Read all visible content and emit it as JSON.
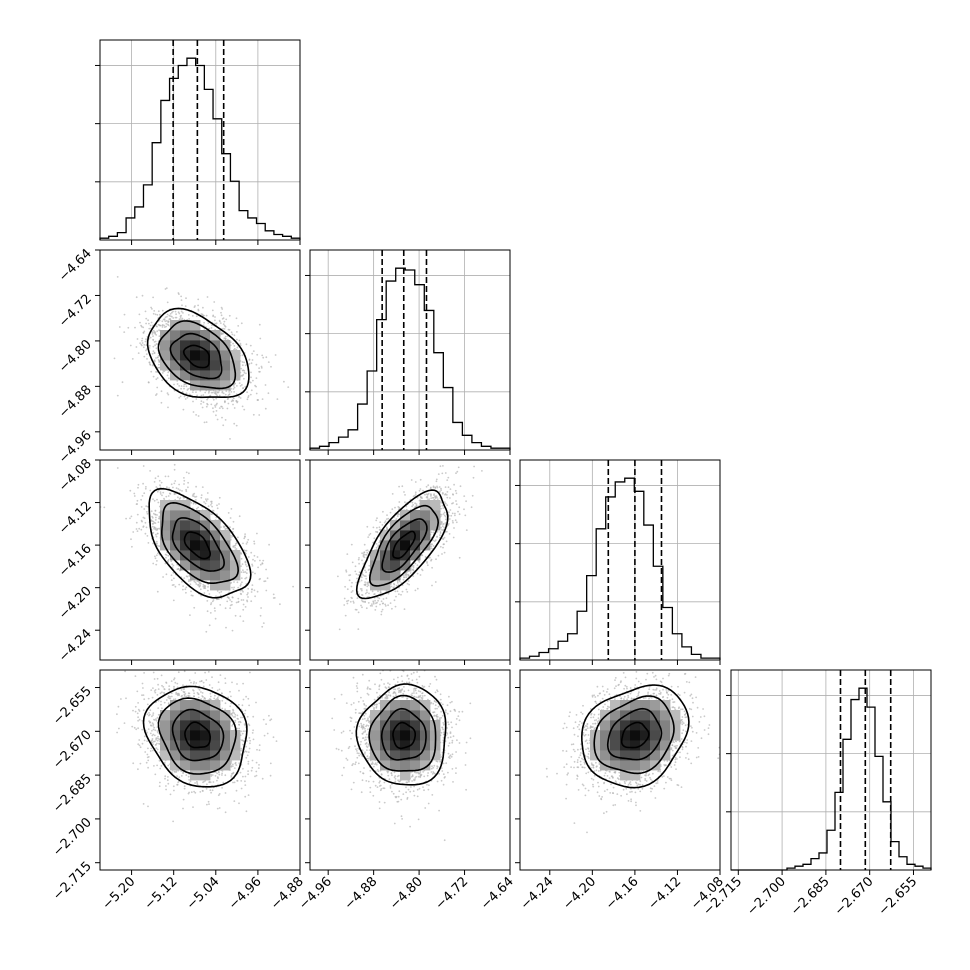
{
  "chart_data": {
    "type": "corner",
    "grid": true,
    "num_params": 4,
    "params": [
      {
        "range": [
          -5.26,
          -4.88
        ],
        "ticks": [
          -5.2,
          -5.12,
          -5.04,
          -4.96,
          -4.88
        ],
        "tick_labels": [
          "−5.20",
          "−5.12",
          "−5.04",
          "−4.96",
          "−4.88"
        ],
        "median": -5.075,
        "q16": -5.121,
        "q84": -5.025,
        "hist_counts": [
          1,
          2,
          4,
          12,
          18,
          30,
          53,
          76,
          88,
          95,
          99,
          95,
          82,
          66,
          47,
          32,
          16,
          12,
          9,
          5,
          3,
          2,
          1
        ]
      },
      {
        "range": [
          -4.992,
          -4.64
        ],
        "ticks": [
          -4.96,
          -4.88,
          -4.8,
          -4.72,
          -4.64
        ],
        "tick_labels": [
          "−4.96",
          "−4.88",
          "−4.80",
          "−4.72",
          "−4.64"
        ],
        "median": -4.827,
        "q16": -4.865,
        "q84": -4.787,
        "hist_counts": [
          1,
          2,
          4,
          7,
          11,
          25,
          43,
          71,
          92,
          99,
          98,
          90,
          76,
          53,
          34,
          15,
          8,
          4,
          2,
          1,
          1
        ]
      },
      {
        "range": [
          -4.268,
          -4.08
        ],
        "ticks": [
          -4.24,
          -4.2,
          -4.16,
          -4.12,
          -4.08
        ],
        "tick_labels": [
          "−4.24",
          "−4.20",
          "−4.16",
          "−4.12",
          "−4.08"
        ],
        "median": -4.16,
        "q16": -4.185,
        "q84": -4.135,
        "hist_counts": [
          1,
          2,
          4,
          6,
          10,
          14,
          26,
          45,
          70,
          87,
          95,
          97,
          90,
          72,
          50,
          28,
          14,
          7,
          3,
          1,
          1
        ]
      },
      {
        "range": [
          -2.7175,
          -2.649
        ],
        "ticks": [
          -2.715,
          -2.7,
          -2.685,
          -2.67,
          -2.655
        ],
        "tick_labels": [
          "−2.715",
          "−2.700",
          "−2.685",
          "−2.670",
          "−2.655"
        ],
        "median": -2.6715,
        "q16": -2.68,
        "q84": -2.6628,
        "hist_counts": [
          0,
          0,
          0,
          0,
          0,
          0,
          0,
          1,
          2,
          3,
          6,
          9,
          21,
          41,
          69,
          90,
          96,
          86,
          60,
          36,
          15,
          7,
          3,
          2,
          1
        ]
      }
    ],
    "pairs": [
      {
        "row": 1,
        "col": 0,
        "correlation": -0.35
      },
      {
        "row": 2,
        "col": 0,
        "correlation": -0.55
      },
      {
        "row": 2,
        "col": 1,
        "correlation": 0.7
      },
      {
        "row": 3,
        "col": 0,
        "correlation": -0.15
      },
      {
        "row": 3,
        "col": 1,
        "correlation": 0.0
      },
      {
        "row": 3,
        "col": 2,
        "correlation": 0.2
      }
    ],
    "contour_levels_sigma": [
      0.5,
      1.0,
      1.5,
      2.0
    ],
    "colors": {
      "line": "#000000",
      "grid": "#b0b0b0",
      "points": "#b4b4b4"
    }
  }
}
